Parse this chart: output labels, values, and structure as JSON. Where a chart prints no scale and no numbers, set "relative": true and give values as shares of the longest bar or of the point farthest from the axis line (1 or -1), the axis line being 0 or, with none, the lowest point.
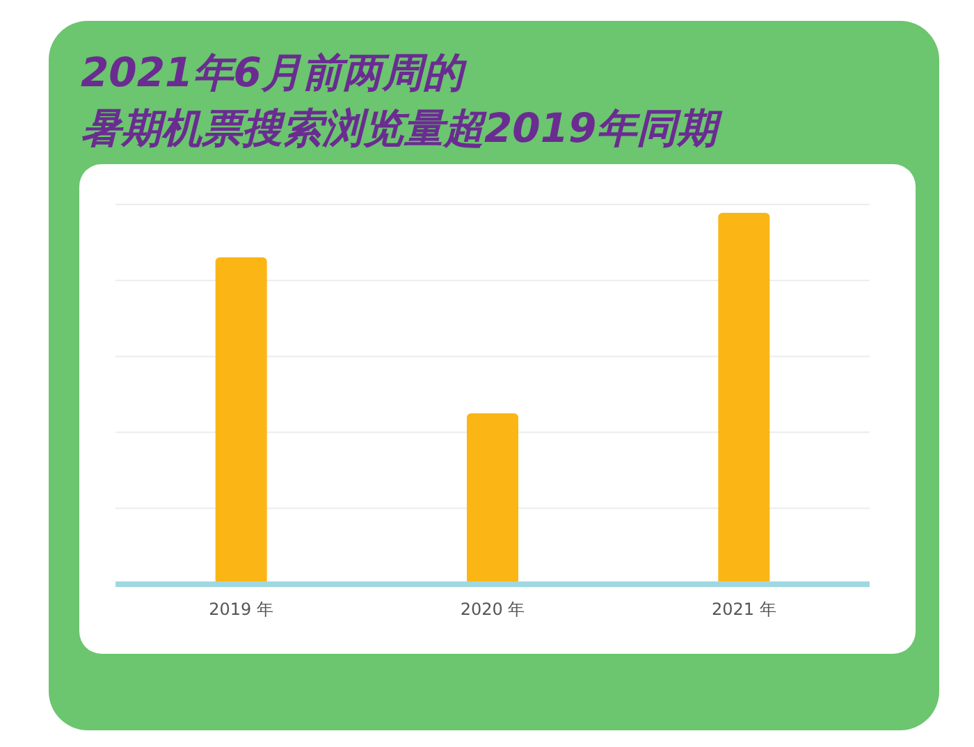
{
  "chart_data": {
    "type": "bar",
    "title": "2021年6月前两周的",
    "subtitle": "暑期机票搜索浏览量超2019年同期",
    "categories": [
      "2019 年",
      "2020 年",
      "2021 年"
    ],
    "values": [
      0.88,
      0.46,
      1
    ],
    "color": "#fbb515",
    "relative": true,
    "grid": "y"
  }
}
